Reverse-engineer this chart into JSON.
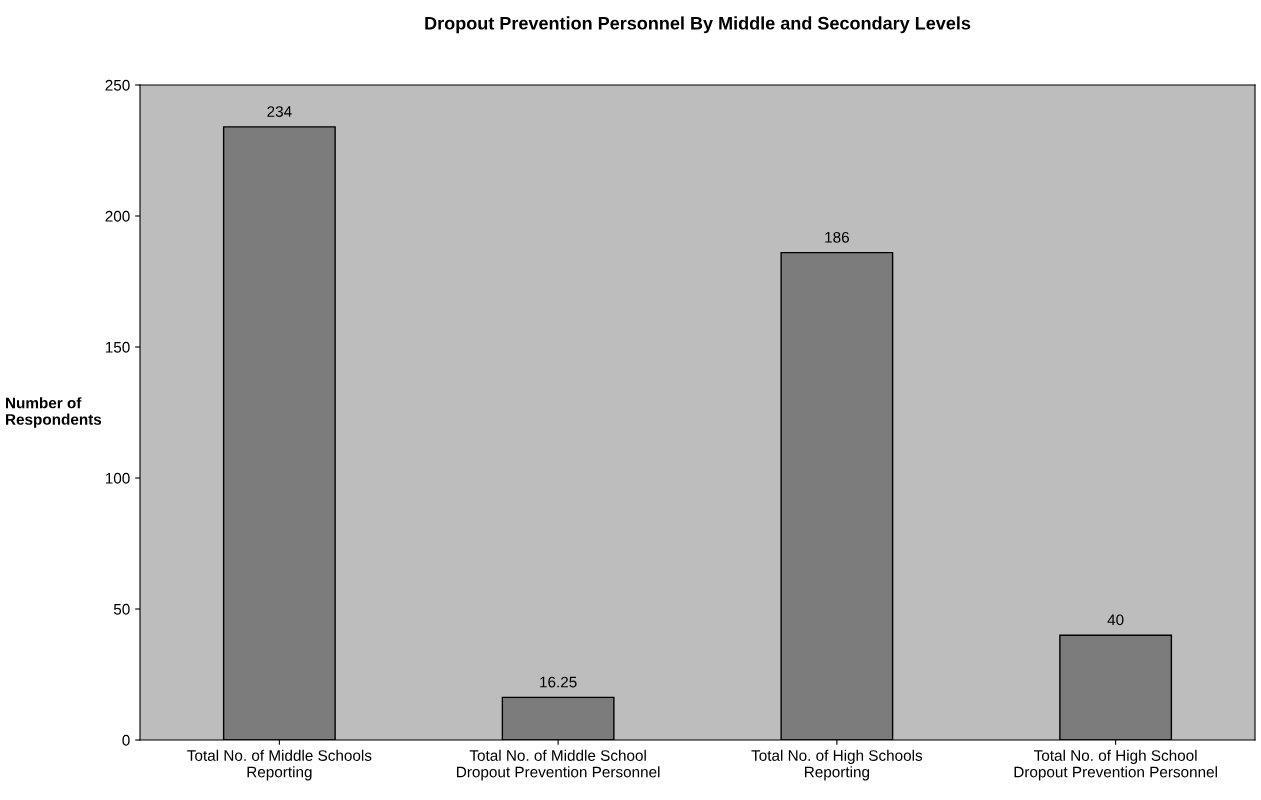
{
  "chart_data": {
    "type": "bar",
    "title": "Dropout Prevention Personnel By Middle and Secondary Levels",
    "ylabel": "Number of\nRespondents",
    "categories": [
      "Total No. of Middle Schools\nReporting",
      "Total No. of Middle School\nDropout Prevention Personnel",
      "Total No. of High Schools\nReporting",
      "Total No. of High School\nDropout Prevention Personnel"
    ],
    "values": [
      234,
      16.25,
      186,
      40
    ],
    "color": "#7c7c7c",
    "data_labels": true,
    "ylim": [
      0,
      250
    ],
    "yticks": [
      0,
      50,
      100,
      150,
      200,
      250
    ],
    "grid": false,
    "legend": false
  }
}
